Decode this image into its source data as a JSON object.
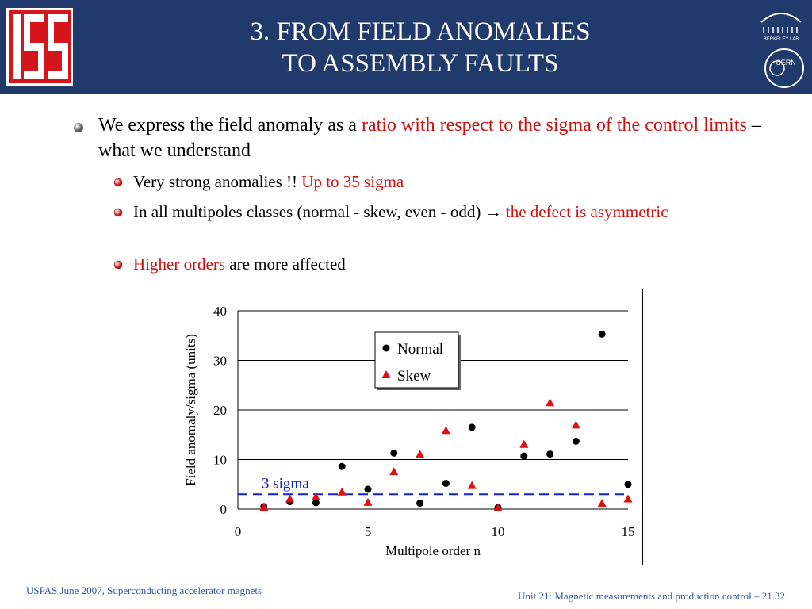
{
  "header": {
    "title_line1": "3. FROM FIELD ANOMALIES",
    "title_line2": "TO ASSEMBLY FAULTS",
    "bg_color": "#1f3a6b"
  },
  "logos": {
    "left": "USPAS",
    "right_top": "BERKELEY LAB",
    "right_bottom": "CERN"
  },
  "bullets": {
    "main": {
      "text1": "We express the field anomaly as a ",
      "text_red": "ratio with respect to the sigma of the control limits",
      "text2": " – what we understand"
    },
    "sub": [
      {
        "text1": "Very strong anomalies !! ",
        "text_red": "Up to 35 sigma",
        "text2": ""
      },
      {
        "text1": "In all multipoles classes (normal - skew, even - odd) → ",
        "text_red": "the defect is asymmetric",
        "text2": ""
      },
      {
        "text1": "",
        "text_red": "Higher orders",
        "text2": " are more affected"
      }
    ]
  },
  "chart_data": {
    "type": "scatter",
    "xlabel": "Multipole order n",
    "ylabel": "Field anomaly/sigma (units)",
    "xlim": [
      0,
      15
    ],
    "ylim": [
      0,
      40
    ],
    "xticks": [
      0,
      5,
      10,
      15
    ],
    "yticks": [
      0,
      10,
      20,
      30,
      40
    ],
    "grid": "horizontal",
    "legend_position": "top-center",
    "series": [
      {
        "name": "Normal",
        "marker": "circle",
        "color": "#000000",
        "x": [
          1,
          2,
          3,
          4,
          5,
          6,
          7,
          8,
          9,
          10,
          11,
          12,
          13,
          14,
          15
        ],
        "y": [
          0.5,
          1.5,
          1.3,
          8.6,
          4.0,
          11.3,
          1.2,
          5.2,
          16.5,
          0.3,
          10.7,
          11.1,
          13.7,
          35.3,
          5.0
        ]
      },
      {
        "name": "Skew",
        "marker": "triangle",
        "color": "#dd1111",
        "x": [
          1,
          2,
          3,
          4,
          5,
          6,
          7,
          8,
          9,
          10,
          11,
          12,
          13,
          14,
          15
        ],
        "y": [
          0.3,
          2.0,
          2.4,
          3.4,
          1.3,
          7.5,
          11.0,
          15.8,
          4.7,
          0.2,
          13.0,
          21.4,
          16.9,
          1.1,
          2.0
        ]
      }
    ],
    "reference_line": {
      "y": 3,
      "label": "3 sigma",
      "color": "#1122cc",
      "style": "dashed"
    }
  },
  "footer": {
    "left": "USPAS June  2007,  Superconducting accelerator magnets",
    "right": "Unit 21: Magnetic measurements and production control  – 21.32"
  }
}
